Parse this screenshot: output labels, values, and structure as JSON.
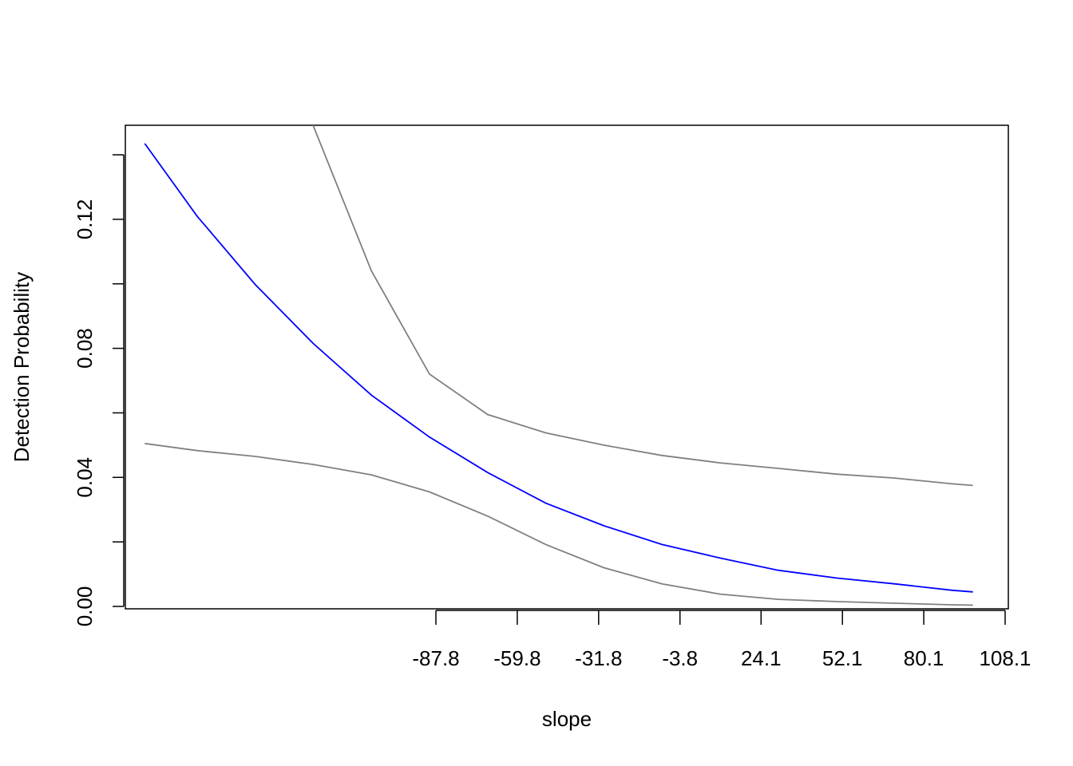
{
  "chart_data": {
    "type": "line",
    "title": "",
    "xlabel": "slope",
    "ylabel": "Detection Probability",
    "xlim": [
      -199.8,
      108.1
    ],
    "ylim": [
      0,
      0.14
    ],
    "grid": false,
    "legend": "none",
    "x_ticks": [
      -87.8,
      -59.8,
      -31.8,
      -3.8,
      24.1,
      52.1,
      80.1,
      108.1
    ],
    "x_tick_labels": [
      "-87.8",
      "-59.8",
      "-31.8",
      "-3.8",
      "24.1",
      "52.1",
      "80.1",
      "108.1"
    ],
    "y_ticks": [
      0,
      0.02,
      0.04,
      0.06,
      0.08,
      0.1,
      0.12,
      0.14
    ],
    "y_tick_labels": [
      "0.00",
      "",
      "0.04",
      "",
      "0.08",
      "",
      "0.12",
      ""
    ],
    "colors": {
      "estimate": "#0000ff",
      "bounds": "#808080",
      "axes": "#000000"
    },
    "x": [
      -188,
      -170,
      -150,
      -130,
      -110,
      -90,
      -70,
      -50,
      -30,
      -10,
      10,
      30,
      50,
      70,
      90,
      97
    ],
    "series": [
      {
        "role": "estimate",
        "values": [
          0.1435,
          0.121,
          0.0998,
          0.0815,
          0.0655,
          0.0525,
          0.0415,
          0.032,
          0.025,
          0.0192,
          0.015,
          0.0112,
          0.0088,
          0.007,
          0.005,
          0.0045
        ]
      },
      {
        "role": "upper",
        "values": [
          null,
          null,
          null,
          0.149,
          0.104,
          0.072,
          0.0595,
          0.0538,
          0.05,
          0.0468,
          0.0445,
          0.0428,
          0.041,
          0.0398,
          0.038,
          0.0375
        ]
      },
      {
        "role": "lower",
        "values": [
          0.0505,
          0.0483,
          0.0465,
          0.044,
          0.0408,
          0.0355,
          0.028,
          0.0192,
          0.012,
          0.007,
          0.0038,
          0.0022,
          0.0015,
          0.001,
          0.0005,
          0.0004
        ]
      }
    ]
  }
}
